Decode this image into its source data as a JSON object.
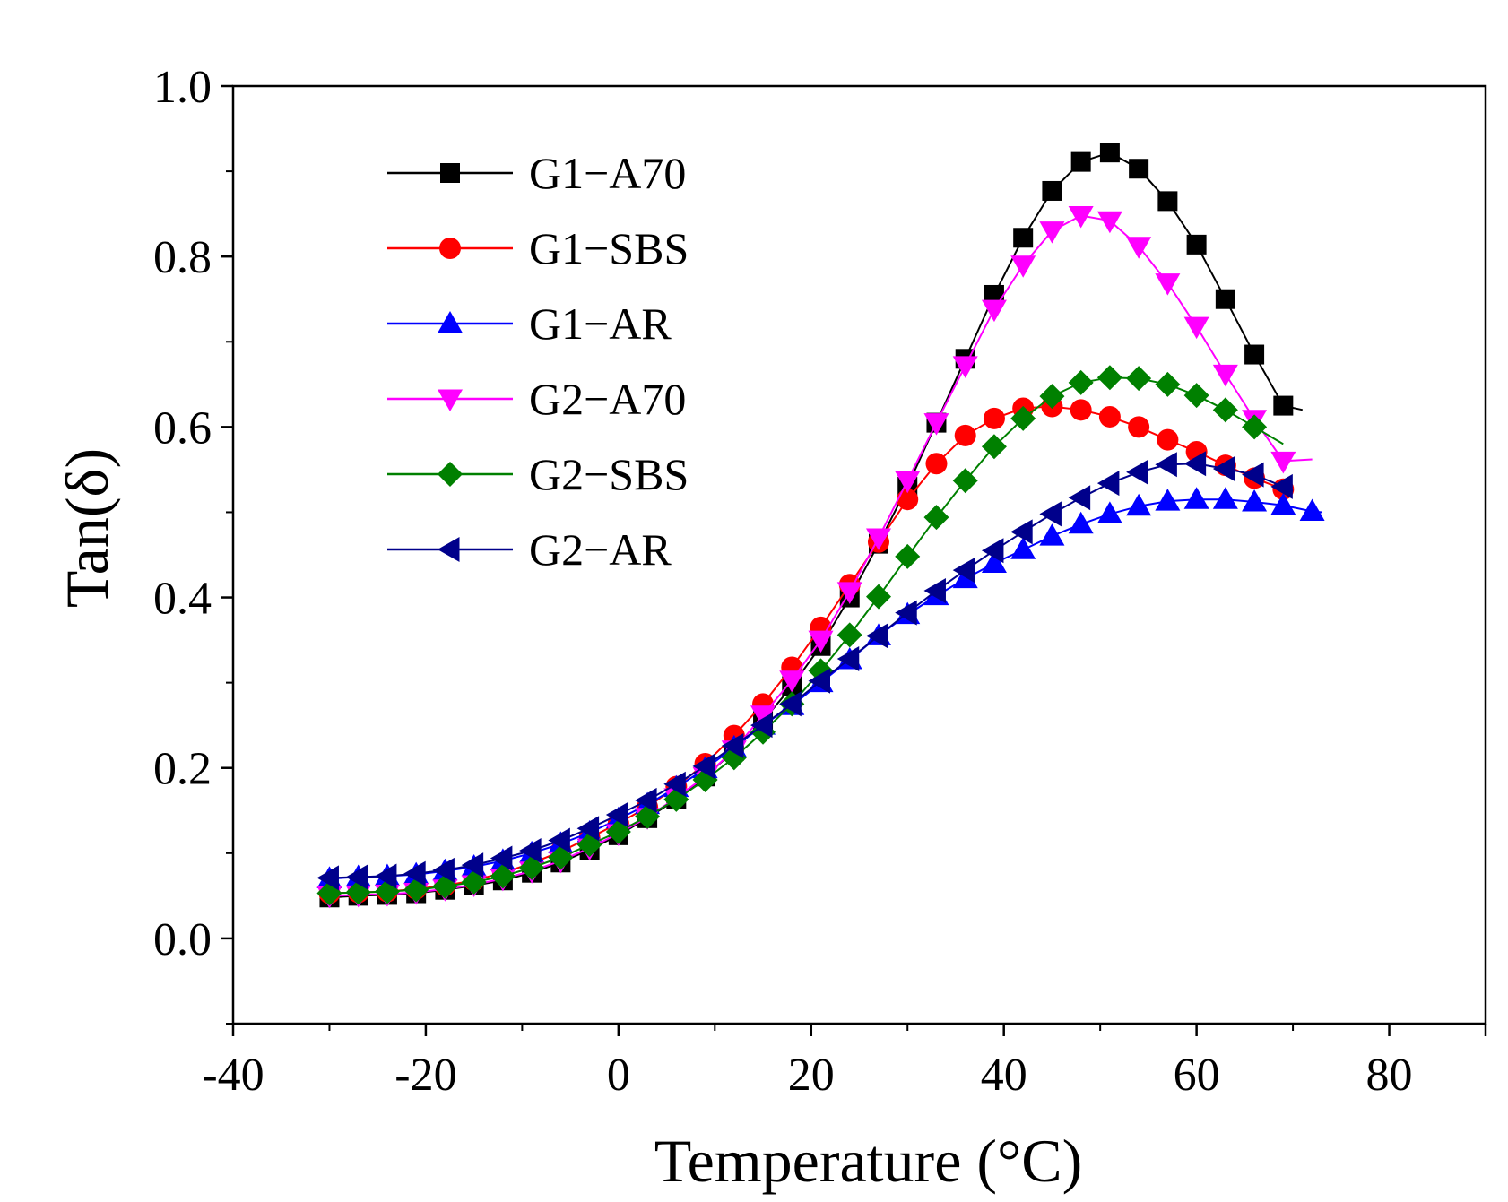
{
  "chart_data": {
    "type": "line",
    "title": "",
    "xlabel": "Temperature (°C)",
    "ylabel": "Tan(δ)",
    "xlim": [
      -40,
      90
    ],
    "ylim": [
      -0.1,
      1.0
    ],
    "xticks": [
      -40,
      -20,
      0,
      20,
      40,
      60,
      80
    ],
    "xtick_labels": [
      "-40",
      "-20",
      "0",
      "20",
      "40",
      "60",
      "80"
    ],
    "yticks": [
      0.0,
      0.2,
      0.4,
      0.6,
      0.8,
      1.0
    ],
    "ytick_labels": [
      "0.0",
      "0.2",
      "0.4",
      "0.6",
      "0.8",
      "1.0"
    ],
    "grid": false,
    "legend_position": "top-left",
    "series": [
      {
        "name": "G1−A70",
        "color": "#000000",
        "marker": "square",
        "x": [
          -30,
          -27,
          -24,
          -21,
          -18,
          -15,
          -12,
          -9,
          -6,
          -3,
          0,
          3,
          6,
          9,
          12,
          15,
          18,
          21,
          24,
          27,
          30,
          33,
          36,
          39,
          42,
          45,
          48,
          51,
          54,
          57,
          60,
          63,
          66,
          69,
          71
        ],
        "y": [
          0.048,
          0.05,
          0.051,
          0.053,
          0.057,
          0.062,
          0.068,
          0.077,
          0.089,
          0.104,
          0.121,
          0.141,
          0.163,
          0.19,
          0.22,
          0.255,
          0.296,
          0.343,
          0.4,
          0.463,
          0.53,
          0.605,
          0.68,
          0.755,
          0.822,
          0.877,
          0.911,
          0.922,
          0.903,
          0.865,
          0.814,
          0.75,
          0.685,
          0.625,
          0.62
        ],
        "marker_from": 0,
        "marker_to": 33
      },
      {
        "name": "G1−SBS",
        "color": "#ff0000",
        "marker": "circle",
        "x": [
          -30,
          -27,
          -24,
          -21,
          -18,
          -15,
          -12,
          -9,
          -6,
          -3,
          0,
          3,
          6,
          9,
          12,
          15,
          18,
          21,
          24,
          27,
          30,
          33,
          36,
          39,
          42,
          45,
          48,
          51,
          54,
          57,
          60,
          63,
          66,
          69
        ],
        "y": [
          0.053,
          0.054,
          0.055,
          0.058,
          0.062,
          0.068,
          0.077,
          0.088,
          0.102,
          0.118,
          0.135,
          0.154,
          0.178,
          0.205,
          0.238,
          0.275,
          0.318,
          0.365,
          0.415,
          0.465,
          0.515,
          0.557,
          0.59,
          0.61,
          0.622,
          0.624,
          0.62,
          0.612,
          0.6,
          0.585,
          0.571,
          0.555,
          0.54,
          0.527
        ],
        "marker_from": 0,
        "marker_to": 33
      },
      {
        "name": "G1−AR",
        "color": "#0000ff",
        "marker": "triangle-up",
        "x": [
          -30,
          -27,
          -24,
          -21,
          -18,
          -15,
          -12,
          -9,
          -6,
          -3,
          0,
          3,
          6,
          9,
          12,
          15,
          18,
          21,
          24,
          27,
          30,
          33,
          36,
          39,
          42,
          45,
          48,
          51,
          54,
          57,
          60,
          63,
          66,
          69,
          72,
          73
        ],
        "y": [
          0.07,
          0.072,
          0.073,
          0.075,
          0.079,
          0.084,
          0.091,
          0.1,
          0.111,
          0.124,
          0.14,
          0.157,
          0.177,
          0.199,
          0.224,
          0.25,
          0.273,
          0.3,
          0.327,
          0.355,
          0.38,
          0.402,
          0.422,
          0.44,
          0.456,
          0.472,
          0.486,
          0.498,
          0.507,
          0.513,
          0.515,
          0.515,
          0.512,
          0.508,
          0.501,
          0.5
        ],
        "marker_from": 0,
        "marker_to": 34
      },
      {
        "name": "G2−A70",
        "color": "#ff00ff",
        "marker": "triangle-down",
        "x": [
          -30,
          -27,
          -24,
          -21,
          -18,
          -15,
          -12,
          -9,
          -6,
          -3,
          0,
          3,
          6,
          9,
          12,
          15,
          18,
          21,
          24,
          27,
          30,
          33,
          36,
          39,
          42,
          45,
          48,
          51,
          54,
          57,
          60,
          63,
          66,
          69,
          72
        ],
        "y": [
          0.05,
          0.051,
          0.052,
          0.054,
          0.058,
          0.063,
          0.07,
          0.079,
          0.091,
          0.106,
          0.123,
          0.142,
          0.165,
          0.19,
          0.221,
          0.262,
          0.303,
          0.35,
          0.407,
          0.47,
          0.537,
          0.605,
          0.672,
          0.738,
          0.79,
          0.83,
          0.848,
          0.842,
          0.812,
          0.769,
          0.718,
          0.662,
          0.609,
          0.56,
          0.562
        ],
        "marker_from": 0,
        "marker_to": 33
      },
      {
        "name": "G2−SBS",
        "color": "#008000",
        "marker": "diamond",
        "x": [
          -30,
          -27,
          -24,
          -21,
          -18,
          -15,
          -12,
          -9,
          -6,
          -3,
          0,
          3,
          6,
          9,
          12,
          15,
          18,
          21,
          24,
          27,
          30,
          33,
          36,
          39,
          42,
          45,
          48,
          51,
          54,
          57,
          60,
          63,
          66,
          69
        ],
        "y": [
          0.053,
          0.054,
          0.055,
          0.057,
          0.061,
          0.066,
          0.073,
          0.083,
          0.095,
          0.11,
          0.125,
          0.143,
          0.163,
          0.186,
          0.212,
          0.242,
          0.275,
          0.314,
          0.356,
          0.401,
          0.448,
          0.494,
          0.537,
          0.577,
          0.61,
          0.636,
          0.652,
          0.658,
          0.657,
          0.65,
          0.637,
          0.62,
          0.6,
          0.58
        ],
        "marker_from": 0,
        "marker_to": 32
      },
      {
        "name": "G2−AR",
        "color": "#00008b",
        "marker": "triangle-left",
        "x": [
          -30,
          -27,
          -24,
          -21,
          -18,
          -15,
          -12,
          -9,
          -6,
          -3,
          0,
          3,
          6,
          9,
          12,
          15,
          18,
          21,
          24,
          27,
          30,
          33,
          36,
          39,
          42,
          45,
          48,
          51,
          54,
          57,
          60,
          63,
          66,
          69,
          70
        ],
        "y": [
          0.071,
          0.072,
          0.073,
          0.076,
          0.08,
          0.086,
          0.094,
          0.103,
          0.115,
          0.129,
          0.145,
          0.162,
          0.181,
          0.202,
          0.226,
          0.25,
          0.275,
          0.302,
          0.328,
          0.355,
          0.382,
          0.408,
          0.432,
          0.455,
          0.477,
          0.498,
          0.517,
          0.534,
          0.547,
          0.556,
          0.557,
          0.551,
          0.544,
          0.53,
          0.525
        ],
        "marker_from": 0,
        "marker_to": 33
      }
    ]
  }
}
